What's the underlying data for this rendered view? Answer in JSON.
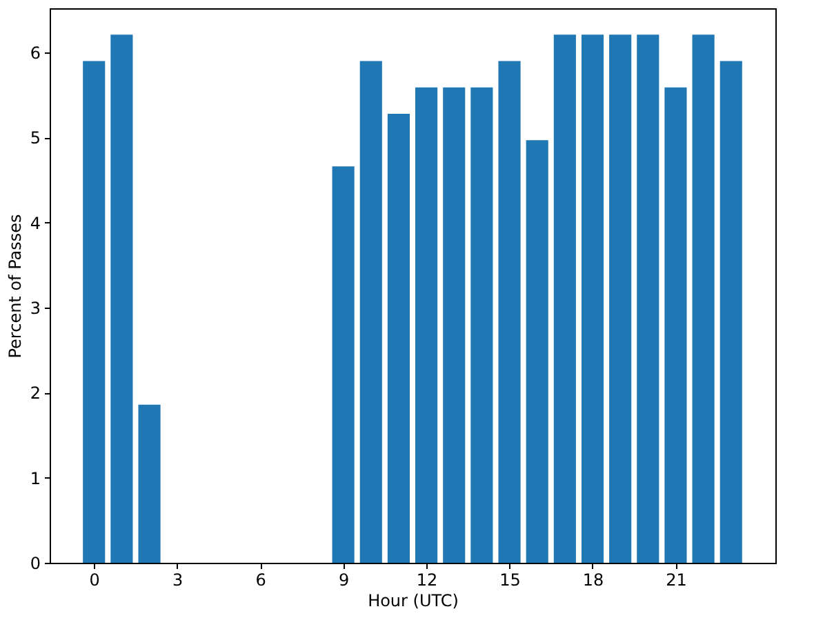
{
  "chart_data": {
    "type": "bar",
    "xlabel": "Hour (UTC)",
    "ylabel": "Percent of Passes",
    "x": [
      0,
      1,
      2,
      3,
      4,
      5,
      6,
      7,
      8,
      9,
      10,
      11,
      12,
      13,
      14,
      15,
      16,
      17,
      18,
      19,
      20,
      21,
      22,
      23
    ],
    "values": [
      5.9,
      6.21,
      1.86,
      0,
      0,
      0,
      0,
      0,
      0,
      4.66,
      5.9,
      5.28,
      5.59,
      5.59,
      5.59,
      5.9,
      4.97,
      6.21,
      6.21,
      6.21,
      6.21,
      5.59,
      6.21,
      5.9
    ],
    "color": "#1f77b4",
    "xlim": [
      -1.6,
      24.6
    ],
    "xticks": [
      0,
      3,
      6,
      9,
      12,
      15,
      18,
      21
    ],
    "ylim": [
      0,
      6.52
    ],
    "yticks": [
      0,
      1,
      2,
      3,
      4,
      5,
      6
    ],
    "grid": false
  }
}
